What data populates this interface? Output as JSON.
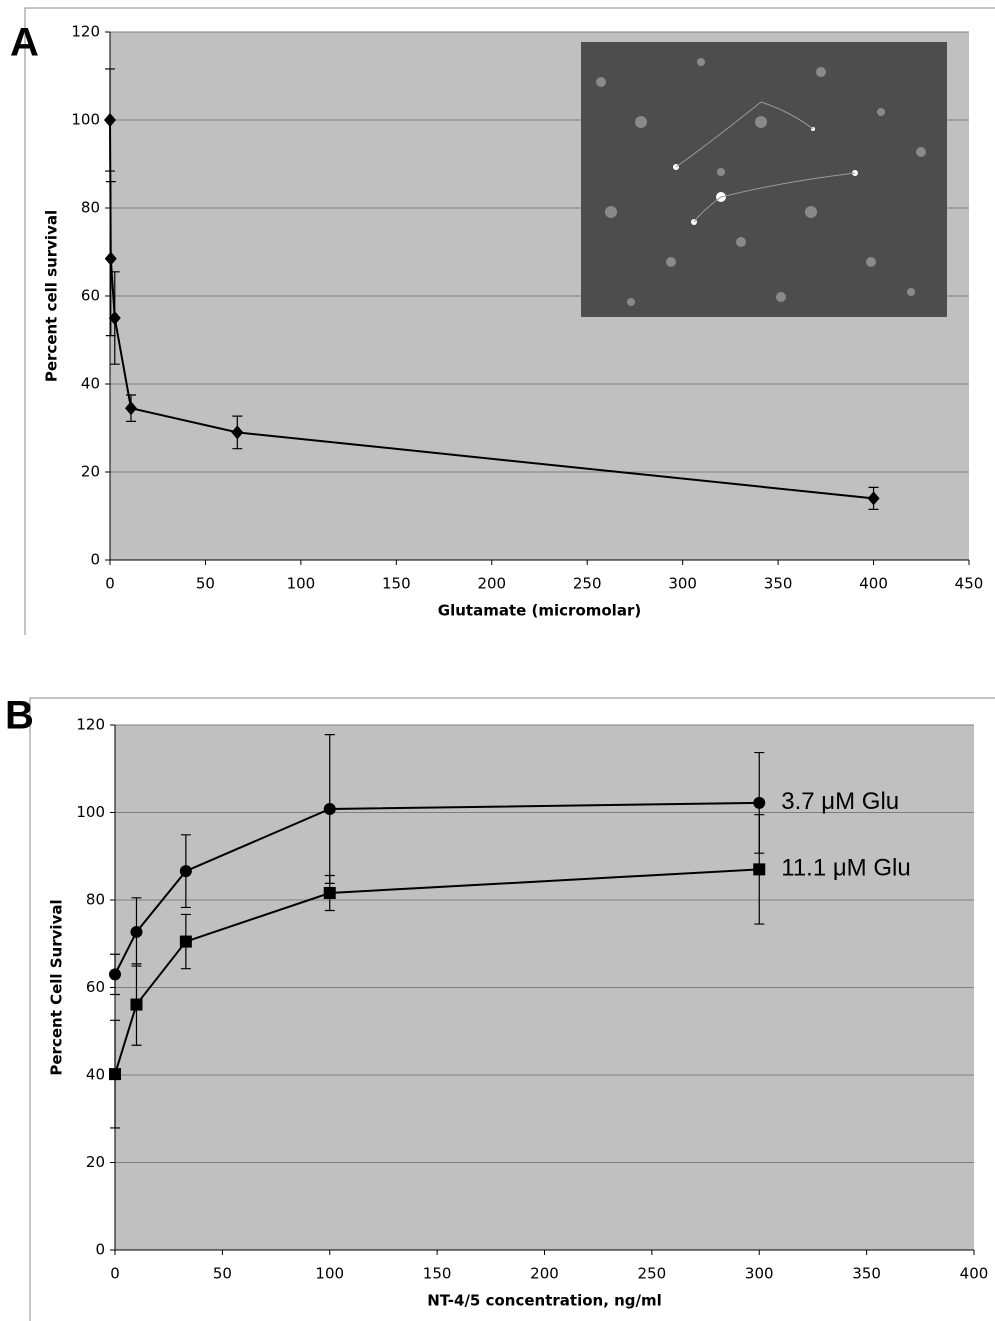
{
  "chart_data": [
    {
      "type": "line",
      "panel_label": "A",
      "xlabel": "Glutamate (micromolar)",
      "ylabel": "Percent cell survival",
      "x": [
        0,
        0.4,
        2.5,
        11,
        66.7,
        400
      ],
      "series": [
        {
          "color": "#000000",
          "marker": "diamond",
          "values": [
            100,
            68.5,
            55,
            34.5,
            29,
            14
          ],
          "errors": [
            11.6,
            17.5,
            10.5,
            3,
            3.7,
            2.5
          ]
        }
      ],
      "xlim": [
        0,
        450
      ],
      "xticks": [
        0,
        50,
        100,
        150,
        200,
        250,
        300,
        350,
        400,
        450
      ],
      "ylim": [
        0,
        120
      ],
      "yticks": [
        0,
        20,
        40,
        60,
        80,
        100,
        120
      ],
      "grid": true
    },
    {
      "type": "line",
      "panel_label": "B",
      "xlabel": "NT-4/5 concentration, ng/ml",
      "ylabel": "Percent Cell Survival",
      "x": [
        0,
        10,
        33,
        100,
        300
      ],
      "series": [
        {
          "name": "3.7 μM Glu",
          "color": "#000000",
          "marker": "circle",
          "values": [
            63,
            72.7,
            86.6,
            100.8,
            102.2
          ],
          "errors": [
            4.6,
            7.8,
            8.3,
            17,
            11.5
          ]
        },
        {
          "name": "11.1 μM Glu",
          "color": "#000000",
          "marker": "square",
          "values": [
            40.2,
            56.1,
            70.5,
            81.6,
            87
          ],
          "errors": [
            12.3,
            9.3,
            6.2,
            4,
            12.5
          ]
        }
      ],
      "xlim": [
        0,
        400
      ],
      "xticks": [
        0,
        50,
        100,
        150,
        200,
        250,
        300,
        350,
        400
      ],
      "ylim": [
        0,
        120
      ],
      "yticks": [
        0,
        20,
        40,
        60,
        80,
        100,
        120
      ],
      "grid": true
    }
  ]
}
